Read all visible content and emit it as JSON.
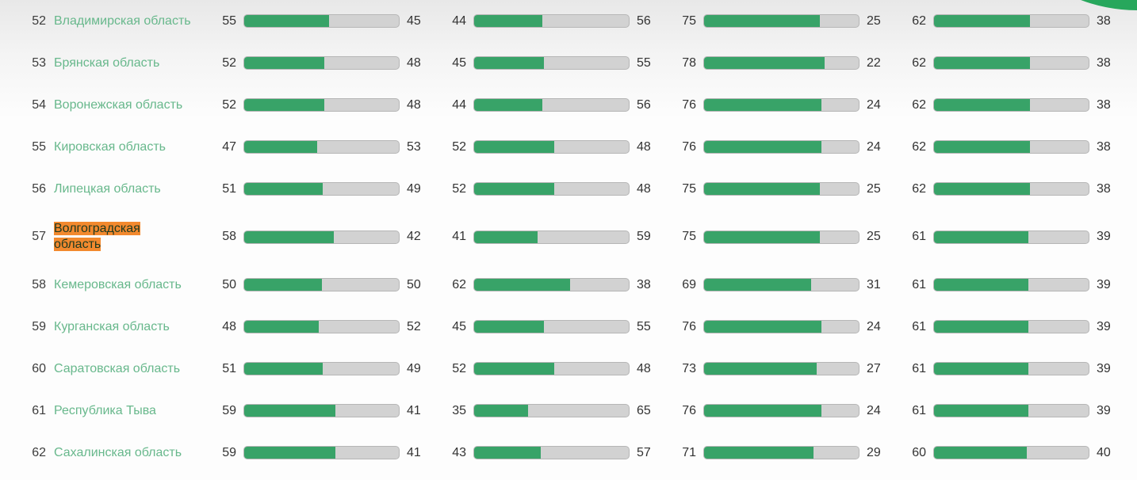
{
  "colors": {
    "bar_green": "#38a368",
    "bar_track": "#d2d2d2",
    "bar_border": "#b6b6b6",
    "region_link": "#68b88c",
    "rank_text": "#3d3d3d",
    "value_text": "#333333",
    "highlight_bg": "#f2892e",
    "highlight_text": "#203a20",
    "fab_green": "#27a75c"
  },
  "table": {
    "rows": [
      {
        "rank": 52,
        "name": "Владимирская область",
        "highlight": false,
        "bars": [
          [
            55,
            45
          ],
          [
            44,
            56
          ],
          [
            75,
            25
          ],
          [
            62,
            38
          ]
        ]
      },
      {
        "rank": 53,
        "name": "Брянская область",
        "highlight": false,
        "bars": [
          [
            52,
            48
          ],
          [
            45,
            55
          ],
          [
            78,
            22
          ],
          [
            62,
            38
          ]
        ]
      },
      {
        "rank": 54,
        "name": "Воронежская область",
        "highlight": false,
        "bars": [
          [
            52,
            48
          ],
          [
            44,
            56
          ],
          [
            76,
            24
          ],
          [
            62,
            38
          ]
        ]
      },
      {
        "rank": 55,
        "name": "Кировская область",
        "highlight": false,
        "bars": [
          [
            47,
            53
          ],
          [
            52,
            48
          ],
          [
            76,
            24
          ],
          [
            62,
            38
          ]
        ]
      },
      {
        "rank": 56,
        "name": "Липецкая область",
        "highlight": false,
        "bars": [
          [
            51,
            49
          ],
          [
            52,
            48
          ],
          [
            75,
            25
          ],
          [
            62,
            38
          ]
        ]
      },
      {
        "rank": 57,
        "name": "Волгоградская область",
        "highlight": true,
        "bars": [
          [
            58,
            42
          ],
          [
            41,
            59
          ],
          [
            75,
            25
          ],
          [
            61,
            39
          ]
        ]
      },
      {
        "rank": 58,
        "name": "Кемеровская область",
        "highlight": false,
        "bars": [
          [
            50,
            50
          ],
          [
            62,
            38
          ],
          [
            69,
            31
          ],
          [
            61,
            39
          ]
        ]
      },
      {
        "rank": 59,
        "name": "Курганская область",
        "highlight": false,
        "bars": [
          [
            48,
            52
          ],
          [
            45,
            55
          ],
          [
            76,
            24
          ],
          [
            61,
            39
          ]
        ]
      },
      {
        "rank": 60,
        "name": "Саратовская область",
        "highlight": false,
        "bars": [
          [
            51,
            49
          ],
          [
            52,
            48
          ],
          [
            73,
            27
          ],
          [
            61,
            39
          ]
        ]
      },
      {
        "rank": 61,
        "name": "Республика Тыва",
        "highlight": false,
        "bars": [
          [
            59,
            41
          ],
          [
            35,
            65
          ],
          [
            76,
            24
          ],
          [
            61,
            39
          ]
        ]
      },
      {
        "rank": 62,
        "name": "Сахалинская область",
        "highlight": false,
        "bars": [
          [
            59,
            41
          ],
          [
            43,
            57
          ],
          [
            71,
            29
          ],
          [
            60,
            40
          ]
        ]
      }
    ]
  },
  "chart_data": {
    "type": "bar",
    "orientation": "horizontal",
    "bar_scale": "percent",
    "xlim": [
      0,
      100
    ],
    "grid": false,
    "legend": false,
    "ranks": [
      52,
      53,
      54,
      55,
      56,
      57,
      58,
      59,
      60,
      61,
      62
    ],
    "categories": [
      "Владимирская область",
      "Брянская область",
      "Воронежская область",
      "Кировская область",
      "Липецкая область",
      "Волгоградская область",
      "Кемеровская область",
      "Курганская область",
      "Саратовская область",
      "Республика Тыва",
      "Сахалинская область"
    ],
    "series": [
      {
        "name": "column-1-green",
        "values": [
          55,
          52,
          52,
          47,
          51,
          58,
          50,
          48,
          51,
          59,
          59
        ]
      },
      {
        "name": "column-1-gray",
        "values": [
          45,
          48,
          48,
          53,
          49,
          42,
          50,
          52,
          49,
          41,
          41
        ]
      },
      {
        "name": "column-2-green",
        "values": [
          44,
          45,
          44,
          52,
          52,
          41,
          62,
          45,
          52,
          35,
          43
        ]
      },
      {
        "name": "column-2-gray",
        "values": [
          56,
          55,
          56,
          48,
          48,
          59,
          38,
          55,
          48,
          65,
          57
        ]
      },
      {
        "name": "column-3-green",
        "values": [
          75,
          78,
          76,
          76,
          75,
          75,
          69,
          76,
          73,
          76,
          71
        ]
      },
      {
        "name": "column-3-gray",
        "values": [
          25,
          22,
          24,
          24,
          25,
          25,
          31,
          24,
          27,
          24,
          29
        ]
      },
      {
        "name": "column-4-green",
        "values": [
          62,
          62,
          62,
          62,
          62,
          61,
          61,
          61,
          61,
          61,
          60
        ]
      },
      {
        "name": "column-4-gray",
        "values": [
          38,
          38,
          38,
          38,
          38,
          39,
          39,
          39,
          39,
          39,
          40
        ]
      }
    ],
    "annotations": [
      "row 57 (Волгоградская область) is highlighted in orange"
    ]
  }
}
